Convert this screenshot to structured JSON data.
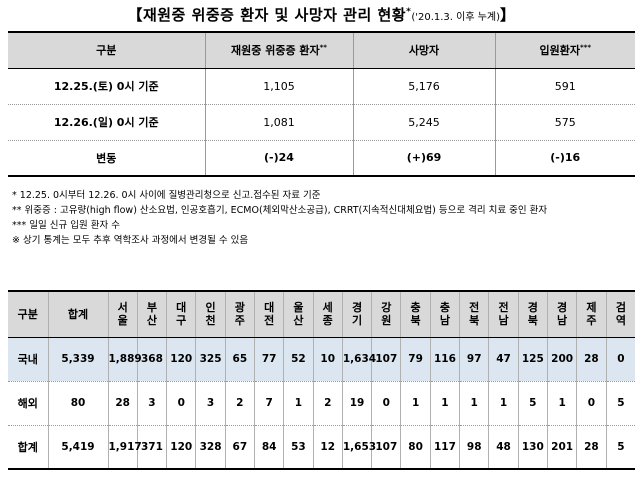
{
  "title": {
    "main": "【재원중 위중증 환자 및 사망자 관리 현황",
    "sup": "*",
    "sub": "('20.1.3. 이후 누계)",
    "close": "】"
  },
  "summary": {
    "headers": [
      "구분",
      "재원중 위중증 환자",
      "사망자",
      "입원환자"
    ],
    "header_sups": [
      "",
      "**",
      "",
      "***"
    ],
    "rows": [
      {
        "label": "12.25.(토) 0시 기준",
        "critical": "1,105",
        "deaths": "5,176",
        "admitted": "591"
      },
      {
        "label": "12.26.(일) 0시 기준",
        "critical": "1,081",
        "deaths": "5,245",
        "admitted": "575"
      },
      {
        "label": "변동",
        "critical": "(-)24",
        "deaths": "(+)69",
        "admitted": "(-)16"
      }
    ]
  },
  "notes": [
    "* 12.25. 0시부터 12.26. 0시 사이에 질병관리청으로 신고.접수된 자료 기준",
    "** 위중증 : 고유량(high flow) 산소요법, 인공호흡기, ECMO(체외막산소공급), CRRT(지속적신대체요법) 등으로 격리 치료 중인 환자",
    "*** 일일 신규 입원 환자 수",
    "※ 상기 통계는 모두 추후 역학조사 과정에서 변경될 수 있음"
  ],
  "regional": {
    "headers": [
      "구분",
      "합계",
      "서울",
      "부산",
      "대구",
      "인천",
      "광주",
      "대전",
      "울산",
      "세종",
      "경기",
      "강원",
      "충북",
      "충남",
      "전북",
      "전남",
      "경북",
      "경남",
      "제주",
      "검역"
    ],
    "rows": [
      {
        "label": "국내",
        "values": [
          "5,339",
          "1,889",
          "368",
          "120",
          "325",
          "65",
          "77",
          "52",
          "10",
          "1,634",
          "107",
          "79",
          "116",
          "97",
          "47",
          "125",
          "200",
          "28",
          "0"
        ]
      },
      {
        "label": "해외",
        "values": [
          "80",
          "28",
          "3",
          "0",
          "3",
          "2",
          "7",
          "1",
          "2",
          "19",
          "0",
          "1",
          "1",
          "1",
          "1",
          "5",
          "1",
          "0",
          "5"
        ]
      },
      {
        "label": "합계",
        "values": [
          "5,419",
          "1,917",
          "371",
          "120",
          "328",
          "67",
          "84",
          "53",
          "12",
          "1,653",
          "107",
          "80",
          "117",
          "98",
          "48",
          "130",
          "201",
          "28",
          "5"
        ]
      }
    ]
  }
}
